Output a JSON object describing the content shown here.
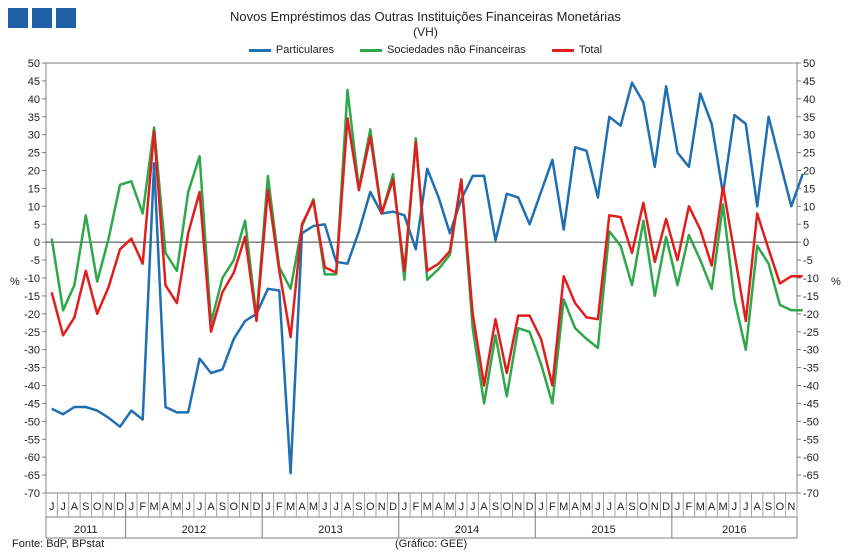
{
  "header": {
    "title": "Novos Empréstimos das Outras Instituições Financeiras Monetárias",
    "subtitle": "(VH)"
  },
  "footer": {
    "source": "Fonte: BdP, BPstat",
    "credit": "(Gráfico: GEE)"
  },
  "colors": {
    "particulares": "#1f6fb2",
    "sociedades": "#2ea84a",
    "total": "#e01e1e",
    "logo": "#1f5fa8"
  },
  "chart_data": {
    "type": "line",
    "ylabel_left": "%",
    "ylabel_right": "%",
    "ylim": [
      -70,
      50
    ],
    "yticks": [
      50,
      45,
      40,
      35,
      30,
      25,
      20,
      15,
      10,
      5,
      0,
      -5,
      -10,
      -15,
      -20,
      -25,
      -30,
      -35,
      -40,
      -45,
      -50,
      -55,
      -60,
      -65,
      -70
    ],
    "grid": false,
    "legend_position": "top-center",
    "month_labels": [
      "J",
      "J",
      "A",
      "S",
      "O",
      "N",
      "D",
      "J",
      "F",
      "M",
      "A",
      "M",
      "J",
      "J",
      "A",
      "S",
      "O",
      "N",
      "D",
      "J",
      "F",
      "M",
      "A",
      "M",
      "J",
      "J",
      "A",
      "S",
      "O",
      "N",
      "D",
      "J",
      "F",
      "M",
      "A",
      "M",
      "J",
      "J",
      "A",
      "S",
      "O",
      "N",
      "D",
      "J",
      "F",
      "M",
      "A",
      "M",
      "J",
      "J",
      "A",
      "S",
      "O",
      "N",
      "D",
      "J",
      "F",
      "M",
      "A",
      "M",
      "J",
      "J",
      "A",
      "S",
      "O",
      "N"
    ],
    "year_labels": [
      "2011",
      "2012",
      "2013",
      "2014",
      "2015",
      "2016"
    ],
    "year_spans": [
      7,
      12,
      12,
      12,
      12,
      11
    ],
    "series": [
      {
        "name": "Particulares",
        "color": "#1f6fb2",
        "values": [
          -46.5,
          -48,
          -46,
          -46,
          -47,
          -49,
          -51.5,
          -47,
          -49.5,
          22,
          -46,
          -47.5,
          -47.5,
          -32.5,
          -36.5,
          -35.5,
          -27,
          -22,
          -20,
          -13,
          -13.5,
          -64.5,
          2.5,
          4.5,
          5,
          -5.5,
          -6,
          3,
          14,
          8,
          8.5,
          7.5,
          -2,
          20.5,
          12.5,
          2.5,
          12,
          18.5,
          18.5,
          0.5,
          13.5,
          12.5,
          5,
          14,
          23,
          3.5,
          26.5,
          25.5,
          12.5,
          35,
          32.5,
          44.5,
          39,
          21,
          43.5,
          25,
          21,
          41.5,
          33,
          13.5,
          35.5,
          33,
          10,
          35,
          22.5,
          10,
          19
        ]
      },
      {
        "name": "Sociedades não Financeiras",
        "color": "#2ea84a",
        "values": [
          1,
          -19,
          -12,
          7.5,
          -11,
          1,
          16,
          17,
          8,
          32,
          -3,
          -8,
          14,
          24,
          -22.5,
          -10,
          -5,
          6,
          -21,
          18.5,
          -7,
          -13,
          4.5,
          12,
          -9,
          -9,
          42.5,
          15,
          31.5,
          8,
          19,
          -10.5,
          29,
          -10.5,
          -7.5,
          -3.5,
          17.5,
          -24,
          -45,
          -26,
          -43,
          -24,
          -25,
          -34,
          -45,
          -16,
          -24,
          -27,
          -29.5,
          3,
          -1,
          -12,
          6,
          -15,
          1.5,
          -12,
          2,
          -5,
          -13,
          10.5,
          -16,
          -30,
          -1,
          -6,
          -17.5,
          -19,
          -19
        ]
      },
      {
        "name": "Total",
        "color": "#e01e1e",
        "values": [
          -14,
          -26,
          -21,
          -8,
          -20,
          -12.5,
          -2,
          1,
          -6,
          31,
          -12,
          -17,
          2.5,
          14,
          -25,
          -14,
          -8.5,
          1.5,
          -22,
          14.5,
          -8,
          -26.5,
          5,
          11.5,
          -7,
          -8.5,
          34.5,
          14.5,
          29.5,
          8,
          17.5,
          -8,
          28,
          -8,
          -6,
          -2.5,
          17.5,
          -20,
          -40,
          -21.5,
          -36.5,
          -20.5,
          -20.5,
          -27,
          -40,
          -9.5,
          -17,
          -21,
          -21.5,
          7.5,
          7,
          -3,
          11,
          -5.5,
          6.5,
          -5,
          10,
          3.5,
          -6.5,
          15.5,
          -3,
          -22,
          8,
          -2,
          -11.5,
          -9.5,
          -9.5
        ]
      }
    ]
  }
}
